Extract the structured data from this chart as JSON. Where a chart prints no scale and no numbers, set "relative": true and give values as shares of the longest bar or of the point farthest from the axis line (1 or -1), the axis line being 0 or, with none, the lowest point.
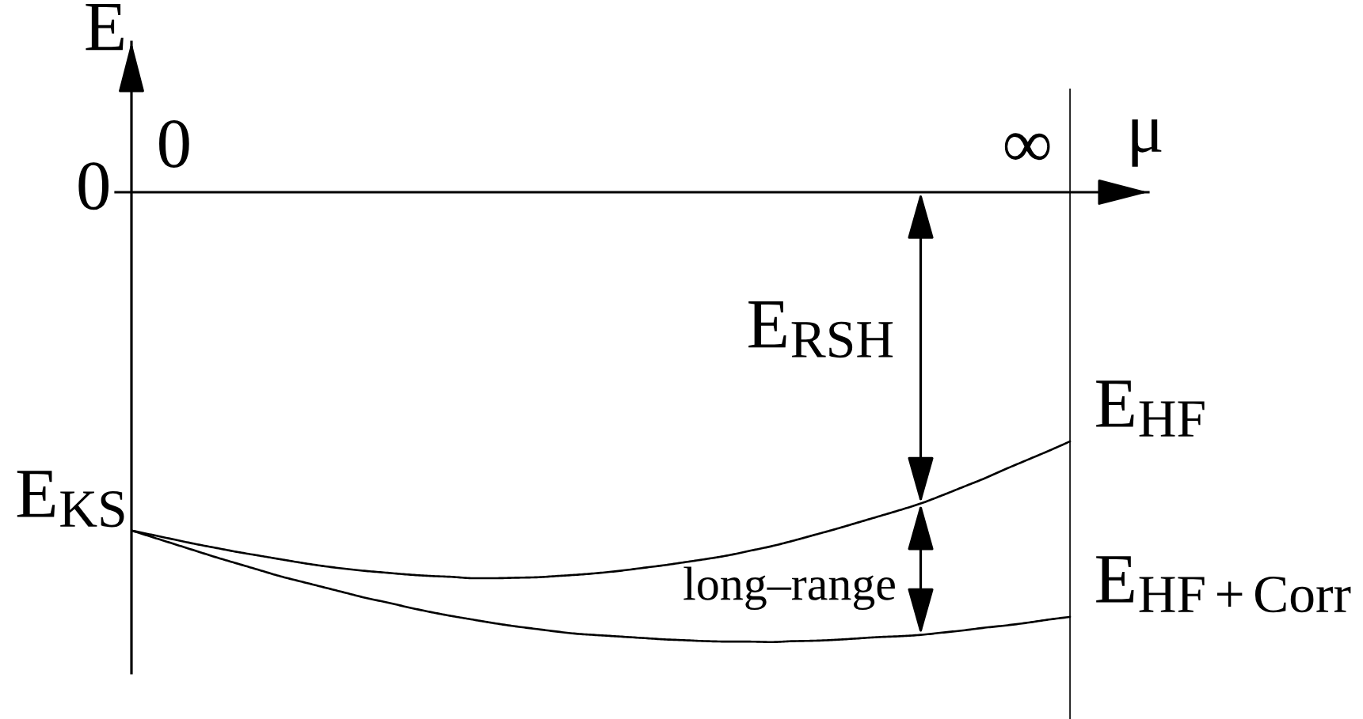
{
  "chart_data": {
    "type": "line",
    "relative": true,
    "xlabel": "μ",
    "ylabel": "E",
    "categories": [
      null,
      null,
      "0",
      null,
      null,
      null,
      null,
      null,
      null,
      null,
      null,
      null,
      null,
      null,
      null,
      null,
      null,
      null,
      null,
      null,
      null,
      null,
      null,
      null,
      null,
      null,
      null,
      null,
      null,
      null,
      null,
      null,
      null,
      null,
      null,
      null,
      null,
      null,
      null,
      null,
      null,
      null,
      "∞",
      null,
      null
    ],
    "series": [
      {
        "name": "E$_{HF}$",
        "color": "#000000",
        "values": [
          -0.752,
          -0.762,
          -0.772,
          -0.782,
          -0.791,
          -0.8,
          -0.808,
          -0.816,
          -0.824,
          -0.831,
          -0.837,
          -0.842,
          -0.846,
          -0.85,
          -0.853,
          -0.855,
          -0.858,
          -0.858,
          -0.857,
          -0.856,
          -0.853,
          -0.85,
          -0.846,
          -0.841,
          -0.835,
          -0.829,
          -0.822,
          -0.815,
          -0.807,
          -0.797,
          -0.787,
          -0.775,
          -0.762,
          -0.749,
          -0.735,
          -0.721,
          -0.707,
          -0.692,
          -0.674,
          -0.655,
          -0.636,
          -0.615,
          -0.595,
          -0.575,
          -0.554
        ]
      },
      {
        "name": "E$_{HF+Corr}$",
        "color": "#000000",
        "values": [
          -0.752,
          -0.767,
          -0.782,
          -0.797,
          -0.812,
          -0.826,
          -0.84,
          -0.854,
          -0.866,
          -0.878,
          -0.89,
          -0.902,
          -0.912,
          -0.923,
          -0.933,
          -0.942,
          -0.95,
          -0.958,
          -0.965,
          -0.971,
          -0.977,
          -0.982,
          -0.985,
          -0.988,
          -0.991,
          -0.994,
          -0.996,
          -0.998,
          -0.999,
          -0.999,
          -1,
          -0.998,
          -0.997,
          -0.995,
          -0.992,
          -0.989,
          -0.987,
          -0.984,
          -0.979,
          -0.974,
          -0.968,
          -0.963,
          -0.957,
          -0.95,
          -0.944
        ]
      }
    ],
    "annotations": [
      "0",
      "E$_{KS}$",
      "E$_{RSH}$",
      "long–range"
    ]
  }
}
